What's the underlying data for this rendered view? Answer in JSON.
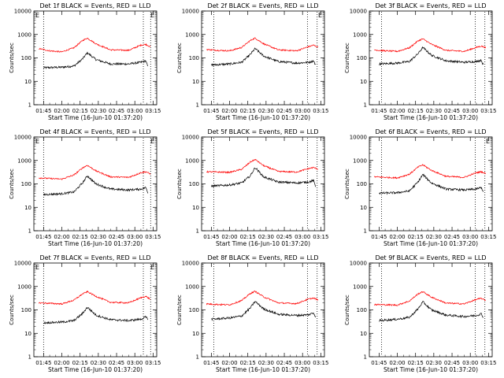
{
  "chart_data": [
    {
      "type": "line",
      "title": "Det 1f BLACK = Events, RED = LLD",
      "xlabel": "Start Time (16-Jun-10 01:37:20)",
      "ylabel": "Counts/sec",
      "yscale": "log",
      "ylim": [
        1,
        10000
      ],
      "xticks": [
        "01:45",
        "02:00",
        "02:15",
        "02:30",
        "02:45",
        "03:00",
        "03:15"
      ],
      "yticks": [
        "1",
        "10",
        "100",
        "1000",
        "10000"
      ],
      "marker_lines": [
        "01:45",
        "03:07",
        "03:13"
      ],
      "corner_flags": [
        "E",
        "E"
      ],
      "series": [
        {
          "color": "#000000",
          "x": [
            "01:45",
            "02:00",
            "02:10",
            "02:17",
            "02:21",
            "02:28",
            "02:40",
            "02:55",
            "03:05",
            "03:09",
            "03:11"
          ],
          "values": [
            38,
            40,
            45,
            90,
            165,
            85,
            55,
            55,
            65,
            75,
            38
          ]
        },
        {
          "color": "#ff0000",
          "x": [
            "01:41",
            "01:50",
            "02:00",
            "02:10",
            "02:17",
            "02:21",
            "02:28",
            "02:40",
            "02:55",
            "03:05",
            "03:09",
            "03:13"
          ],
          "values": [
            250,
            200,
            180,
            270,
            550,
            700,
            400,
            220,
            210,
            350,
            380,
            290
          ]
        }
      ]
    },
    {
      "type": "line",
      "title": "Det 2f BLACK = Events, RED = LLD",
      "xlabel": "Start Time (16-Jun-10 01:37:20)",
      "ylabel": "Counts/sec",
      "yscale": "log",
      "ylim": [
        1,
        10000
      ],
      "xticks": [
        "01:45",
        "02:00",
        "02:15",
        "02:30",
        "02:45",
        "03:00",
        "03:15"
      ],
      "yticks": [
        "1",
        "10",
        "100",
        "1000",
        "10000"
      ],
      "marker_lines": [
        "01:47",
        "03:04",
        "03:12"
      ],
      "corner_flags": [
        "",
        "E"
      ],
      "series": [
        {
          "color": "#000000",
          "x": [
            "01:45",
            "02:00",
            "02:10",
            "02:17",
            "02:21",
            "02:28",
            "02:40",
            "02:55",
            "03:05",
            "03:09",
            "03:11"
          ],
          "values": [
            50,
            55,
            65,
            140,
            250,
            120,
            70,
            60,
            65,
            75,
            45
          ]
        },
        {
          "color": "#ff0000",
          "x": [
            "01:41",
            "01:50",
            "02:00",
            "02:10",
            "02:17",
            "02:21",
            "02:28",
            "02:40",
            "02:55",
            "03:05",
            "03:09",
            "03:13"
          ],
          "values": [
            230,
            210,
            200,
            280,
            550,
            700,
            400,
            220,
            200,
            300,
            350,
            280
          ]
        }
      ]
    },
    {
      "type": "line",
      "title": "Det 3f BLACK = Events, RED = LLD",
      "xlabel": "Start Time (16-Jun-10 01:37:20)",
      "ylabel": "Counts/sec",
      "yscale": "log",
      "ylim": [
        1,
        10000
      ],
      "xticks": [
        "01:45",
        "02:00",
        "02:15",
        "02:30",
        "02:45",
        "03:00",
        "03:15"
      ],
      "yticks": [
        "1",
        "10",
        "100",
        "1000",
        "10000"
      ],
      "marker_lines": [
        "01:47",
        "03:04",
        "03:12"
      ],
      "corner_flags": [
        "",
        ""
      ],
      "series": [
        {
          "color": "#000000",
          "x": [
            "01:45",
            "02:00",
            "02:10",
            "02:17",
            "02:21",
            "02:28",
            "02:40",
            "02:55",
            "03:05",
            "03:09",
            "03:11"
          ],
          "values": [
            55,
            60,
            70,
            150,
            280,
            130,
            75,
            65,
            70,
            80,
            45
          ]
        },
        {
          "color": "#ff0000",
          "x": [
            "01:41",
            "01:50",
            "02:00",
            "02:10",
            "02:17",
            "02:21",
            "02:28",
            "02:40",
            "02:55",
            "03:05",
            "03:09",
            "03:13"
          ],
          "values": [
            220,
            200,
            190,
            270,
            530,
            650,
            380,
            210,
            190,
            280,
            320,
            270
          ]
        }
      ]
    },
    {
      "type": "line",
      "title": "Det 4f BLACK = Events, RED = LLD",
      "xlabel": "Start Time (16-Jun-10 01:37:20)",
      "ylabel": "Counts/sec",
      "yscale": "log",
      "ylim": [
        1,
        10000
      ],
      "xticks": [
        "01:45",
        "02:00",
        "02:15",
        "02:30",
        "02:45",
        "03:00",
        "03:15"
      ],
      "yticks": [
        "1",
        "10",
        "100",
        "1000",
        "10000"
      ],
      "marker_lines": [
        "01:45",
        "03:07",
        "03:13"
      ],
      "corner_flags": [
        "E",
        "E"
      ],
      "series": [
        {
          "color": "#000000",
          "x": [
            "01:45",
            "02:00",
            "02:10",
            "02:17",
            "02:21",
            "02:28",
            "02:40",
            "02:55",
            "03:05",
            "03:09",
            "03:11"
          ],
          "values": [
            35,
            38,
            45,
            110,
            220,
            100,
            60,
            55,
            60,
            70,
            40
          ]
        },
        {
          "color": "#ff0000",
          "x": [
            "01:41",
            "01:50",
            "02:00",
            "02:10",
            "02:17",
            "02:21",
            "02:28",
            "02:40",
            "02:55",
            "03:05",
            "03:09",
            "03:13"
          ],
          "values": [
            180,
            170,
            160,
            240,
            480,
            620,
            360,
            200,
            190,
            300,
            330,
            260
          ]
        }
      ]
    },
    {
      "type": "line",
      "title": "Det 5f BLACK = Events, RED = LLD",
      "xlabel": "Start Time (16-Jun-10 01:37:20)",
      "ylabel": "Counts/sec",
      "yscale": "log",
      "ylim": [
        1,
        10000
      ],
      "xticks": [
        "01:45",
        "02:00",
        "02:15",
        "02:30",
        "02:45",
        "03:00",
        "03:15"
      ],
      "yticks": [
        "1",
        "10",
        "100",
        "1000",
        "10000"
      ],
      "marker_lines": [
        "01:47",
        "03:04",
        "03:12"
      ],
      "corner_flags": [
        "",
        ""
      ],
      "series": [
        {
          "color": "#000000",
          "x": [
            "01:45",
            "02:00",
            "02:10",
            "02:17",
            "02:21",
            "02:28",
            "02:40",
            "02:55",
            "03:05",
            "03:09",
            "03:11"
          ],
          "values": [
            80,
            90,
            110,
            220,
            500,
            200,
            120,
            110,
            120,
            140,
            70
          ]
        },
        {
          "color": "#ff0000",
          "x": [
            "01:41",
            "01:50",
            "02:00",
            "02:10",
            "02:17",
            "02:21",
            "02:28",
            "02:40",
            "02:55",
            "03:05",
            "03:09",
            "03:13"
          ],
          "values": [
            330,
            320,
            310,
            420,
            850,
            1100,
            600,
            340,
            320,
            450,
            500,
            420
          ]
        }
      ]
    },
    {
      "type": "line",
      "title": "Det 6f BLACK = Events, RED = LLD",
      "xlabel": "Start Time (16-Jun-10 01:37:20)",
      "ylabel": "Counts/sec",
      "yscale": "log",
      "ylim": [
        1,
        10000
      ],
      "xticks": [
        "01:45",
        "02:00",
        "02:15",
        "02:30",
        "02:45",
        "03:00",
        "03:15"
      ],
      "yticks": [
        "1",
        "10",
        "100",
        "1000",
        "10000"
      ],
      "marker_lines": [
        "01:47",
        "03:04",
        "03:12"
      ],
      "corner_flags": [
        "",
        "E"
      ],
      "series": [
        {
          "color": "#000000",
          "x": [
            "01:45",
            "02:00",
            "02:10",
            "02:17",
            "02:21",
            "02:28",
            "02:40",
            "02:55",
            "03:05",
            "03:09",
            "03:11"
          ],
          "values": [
            40,
            42,
            50,
            120,
            250,
            110,
            60,
            55,
            60,
            70,
            45
          ]
        },
        {
          "color": "#ff0000",
          "x": [
            "01:41",
            "01:50",
            "02:00",
            "02:10",
            "02:17",
            "02:21",
            "02:28",
            "02:40",
            "02:55",
            "03:05",
            "03:09",
            "03:13"
          ],
          "values": [
            200,
            190,
            180,
            260,
            520,
            650,
            380,
            210,
            190,
            300,
            330,
            270
          ]
        }
      ]
    },
    {
      "type": "line",
      "title": "Det 7f BLACK = Events, RED = LLD",
      "xlabel": "Start Time (16-Jun-10 01:37:20)",
      "ylabel": "Counts/sec",
      "yscale": "log",
      "ylim": [
        1,
        10000
      ],
      "xticks": [
        "01:45",
        "02:00",
        "02:15",
        "02:30",
        "02:45",
        "03:00",
        "03:15"
      ],
      "yticks": [
        "1",
        "10",
        "100",
        "1000",
        "10000"
      ],
      "marker_lines": [
        "01:45",
        "03:07",
        "03:13"
      ],
      "corner_flags": [
        "E",
        "E"
      ],
      "series": [
        {
          "color": "#000000",
          "x": [
            "01:45",
            "02:00",
            "02:10",
            "02:17",
            "02:21",
            "02:28",
            "02:40",
            "02:55",
            "03:05",
            "03:09",
            "03:11"
          ],
          "values": [
            28,
            30,
            35,
            70,
            130,
            60,
            38,
            35,
            40,
            50,
            38
          ]
        },
        {
          "color": "#ff0000",
          "x": [
            "01:41",
            "01:50",
            "02:00",
            "02:10",
            "02:17",
            "02:21",
            "02:28",
            "02:40",
            "02:55",
            "03:05",
            "03:09",
            "03:13"
          ],
          "values": [
            200,
            190,
            180,
            260,
            480,
            600,
            380,
            210,
            200,
            330,
            380,
            280
          ]
        }
      ]
    },
    {
      "type": "line",
      "title": "Det 8f BLACK = Events, RED = LLD",
      "xlabel": "Start Time (16-Jun-10 01:37:20)",
      "ylabel": "Counts/sec",
      "yscale": "log",
      "ylim": [
        1,
        10000
      ],
      "xticks": [
        "01:45",
        "02:00",
        "02:15",
        "02:30",
        "02:45",
        "03:00",
        "03:15"
      ],
      "yticks": [
        "1",
        "10",
        "100",
        "1000",
        "10000"
      ],
      "marker_lines": [
        "01:47",
        "03:04",
        "03:12"
      ],
      "corner_flags": [
        "",
        ""
      ],
      "series": [
        {
          "color": "#000000",
          "x": [
            "01:45",
            "02:00",
            "02:10",
            "02:17",
            "02:21",
            "02:28",
            "02:40",
            "02:55",
            "03:05",
            "03:09",
            "03:11"
          ],
          "values": [
            40,
            45,
            55,
            120,
            230,
            110,
            65,
            58,
            62,
            75,
            48
          ]
        },
        {
          "color": "#ff0000",
          "x": [
            "01:41",
            "01:50",
            "02:00",
            "02:10",
            "02:17",
            "02:21",
            "02:28",
            "02:40",
            "02:55",
            "03:05",
            "03:09",
            "03:13"
          ],
          "values": [
            180,
            170,
            165,
            250,
            500,
            620,
            360,
            200,
            185,
            290,
            320,
            260
          ]
        }
      ]
    },
    {
      "type": "line",
      "title": "Det 9f BLACK = Events, RED = LLD",
      "xlabel": "Start Time (16-Jun-10 01:37:20)",
      "ylabel": "Counts/sec",
      "yscale": "log",
      "ylim": [
        1,
        10000
      ],
      "xticks": [
        "01:45",
        "02:00",
        "02:15",
        "02:30",
        "02:45",
        "03:00",
        "03:15"
      ],
      "yticks": [
        "1",
        "10",
        "100",
        "1000",
        "10000"
      ],
      "marker_lines": [
        "01:47",
        "03:04",
        "03:12"
      ],
      "corner_flags": [
        "",
        ""
      ],
      "series": [
        {
          "color": "#000000",
          "x": [
            "01:45",
            "02:00",
            "02:10",
            "02:17",
            "02:21",
            "02:28",
            "02:40",
            "02:55",
            "03:05",
            "03:09",
            "03:11"
          ],
          "values": [
            35,
            40,
            48,
            110,
            220,
            100,
            60,
            52,
            58,
            68,
            45
          ]
        },
        {
          "color": "#ff0000",
          "x": [
            "01:41",
            "01:50",
            "02:00",
            "02:10",
            "02:17",
            "02:21",
            "02:28",
            "02:40",
            "02:55",
            "03:05",
            "03:09",
            "03:13"
          ],
          "values": [
            170,
            165,
            160,
            240,
            480,
            600,
            350,
            195,
            180,
            280,
            310,
            250
          ]
        }
      ]
    }
  ]
}
